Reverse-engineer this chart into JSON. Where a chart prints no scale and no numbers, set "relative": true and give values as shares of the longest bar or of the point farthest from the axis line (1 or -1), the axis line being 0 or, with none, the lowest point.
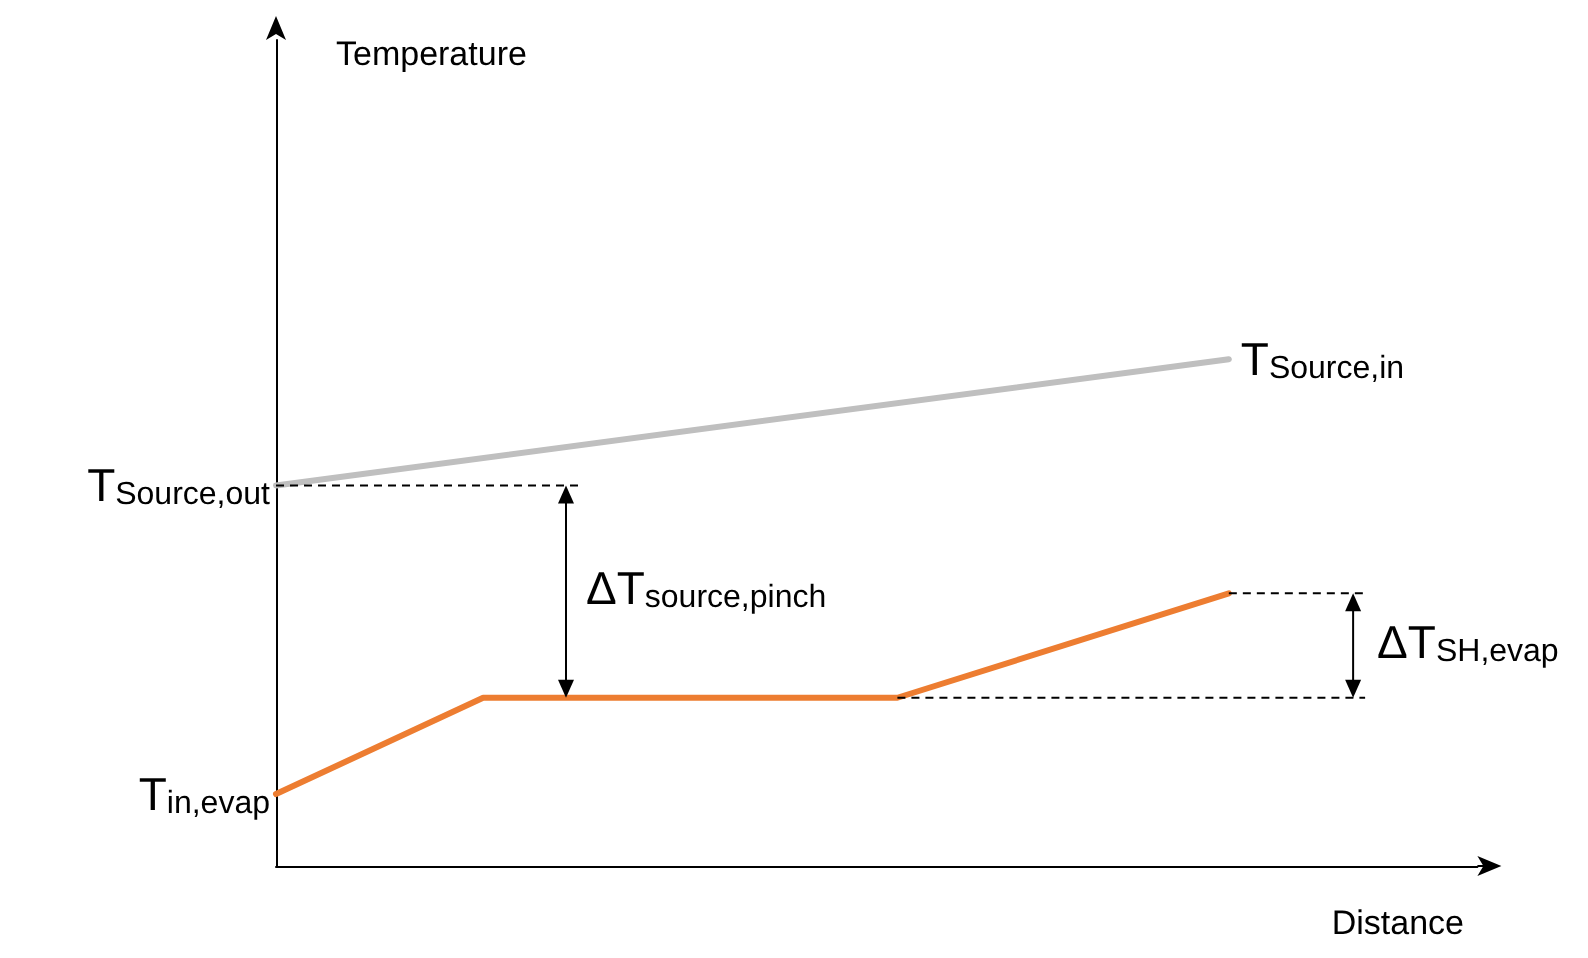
{
  "chart_data": {
    "type": "line",
    "relative": true,
    "xlabel": "Distance",
    "categories": [
      null,
      null,
      null,
      null,
      null,
      null,
      null,
      null,
      null,
      null,
      null,
      null,
      null,
      null,
      null,
      null,
      null,
      null,
      null,
      null,
      null,
      null,
      null,
      null,
      null,
      null,
      null,
      null,
      null,
      null
    ],
    "series": [
      {
        "color": "#bfbfbf",
        "values": [
          0.751,
          null,
          null,
          null,
          null,
          null,
          null,
          null,
          null,
          null,
          null,
          null,
          null,
          null,
          null,
          null,
          null,
          null,
          null,
          null,
          null,
          null,
          null,
          1,
          null,
          null,
          null,
          null,
          null,
          null
        ]
      },
      {
        "color": "#ed7d31",
        "values": [
          0.142,
          null,
          null,
          null,
          null,
          0.332,
          null,
          null,
          null,
          null,
          null,
          null,
          null,
          null,
          null,
          0.332,
          null,
          null,
          null,
          null,
          null,
          null,
          null,
          0.538,
          null,
          null,
          null,
          null,
          null,
          null
        ]
      }
    ],
    "annotations": [
      "T$_{Source,in}$",
      "T$_{Source,out}$",
      "T$_{in,evap}$",
      "ΔT$_{source,pinch}$",
      "ΔT$_{SH,evap}$",
      "Temperature"
    ]
  }
}
